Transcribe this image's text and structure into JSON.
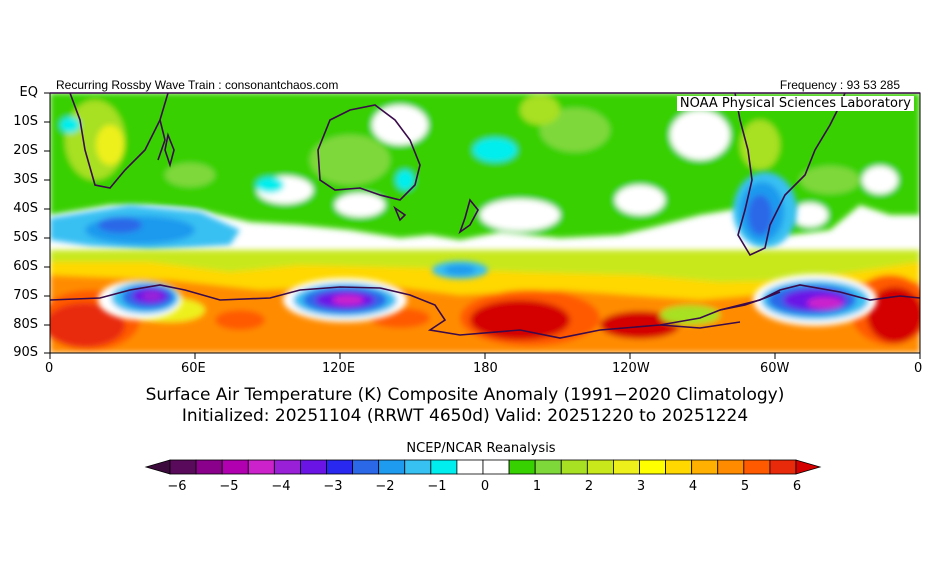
{
  "header": {
    "left_text": "Recurring Rossby Wave Train : consonantchaos.com",
    "right_text": "Frequency : 93 53 285",
    "lab_text": "NOAA Physical Sciences Laboratory"
  },
  "map": {
    "lat_labels": [
      "EQ",
      "10S",
      "20S",
      "30S",
      "40S",
      "50S",
      "60S",
      "70S",
      "80S",
      "90S"
    ],
    "lon_labels": [
      "0",
      "60E",
      "120E",
      "180",
      "120W",
      "60W",
      "0"
    ]
  },
  "titles": {
    "line1": "Surface Air Temperature (K) Composite Anomaly (1991−2020 Climatology)",
    "line2": "Initialized: 20251104 (RRWT 4650d) Valid: 20251220 to 20251224"
  },
  "colorbar": {
    "title": "NCEP/NCAR Reanalysis",
    "tick_labels": [
      "−6",
      "−5",
      "−4",
      "−3",
      "−2",
      "−1",
      "0",
      "1",
      "2",
      "3",
      "4",
      "5",
      "6"
    ],
    "under_color": "#3d0a3d",
    "over_color": "#d40000",
    "colors": [
      "#5a0a5a",
      "#8b008b",
      "#b000b0",
      "#cc22cc",
      "#9a20d8",
      "#6a14e6",
      "#2828f0",
      "#2b68e8",
      "#1e9aee",
      "#37c0f2",
      "#00eeee",
      "#ffffff",
      "#ffffff",
      "#37d000",
      "#7fd83a",
      "#a8e024",
      "#c8e81c",
      "#eef01c",
      "#ffff00",
      "#ffd800",
      "#ffb000",
      "#ff8c00",
      "#ff5a00",
      "#e82a0a"
    ]
  }
}
